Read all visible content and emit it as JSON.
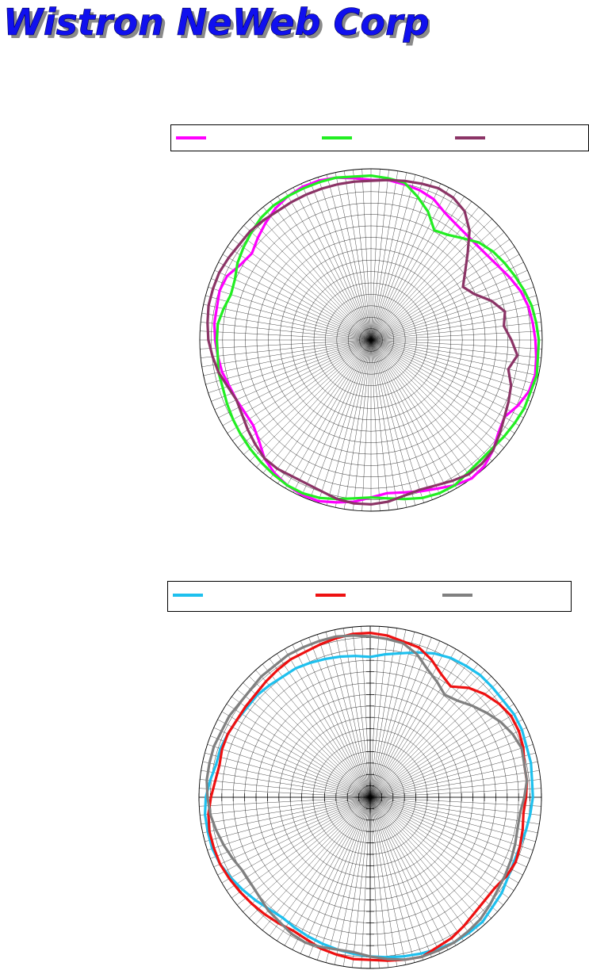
{
  "logo": {
    "text": "Wistron NeWeb Corp.",
    "fill": "#1010ee",
    "shadow": "#8a8a8a"
  },
  "chart_data": [
    {
      "type": "polar-line",
      "radial_grid_rings": 15,
      "angular_spokes": 120,
      "series": [
        {
          "color": "#ff00ff",
          "values": [
            0.935,
            0.94,
            0.93,
            0.92,
            0.9,
            0.86,
            0.84,
            0.83,
            0.83,
            0.84,
            0.86,
            0.89,
            0.92,
            0.94,
            0.95,
            0.96,
            0.97,
            0.98,
            0.97,
            0.94,
            0.9,
            0.92,
            0.96,
            0.99,
            1.0,
            0.98,
            0.95,
            0.93,
            0.91,
            0.9,
            0.92,
            0.95,
            0.97,
            0.99,
            0.99,
            0.98,
            0.96,
            0.93,
            0.88,
            0.85,
            0.85,
            0.86,
            0.87,
            0.89,
            0.9,
            0.91,
            0.92,
            0.92,
            0.93,
            0.92,
            0.88,
            0.86,
            0.89,
            0.92,
            0.95,
            0.97,
            0.98,
            0.98,
            0.97,
            0.95,
            0.935
          ]
        },
        {
          "color": "#22ee22",
          "values": [
            0.96,
            0.95,
            0.94,
            0.88,
            0.82,
            0.74,
            0.76,
            0.8,
            0.85,
            0.88,
            0.9,
            0.92,
            0.94,
            0.96,
            0.97,
            0.98,
            0.98,
            0.99,
            0.98,
            0.98,
            0.97,
            0.96,
            0.95,
            0.95,
            0.96,
            0.98,
            0.98,
            0.97,
            0.95,
            0.93,
            0.92,
            0.93,
            0.95,
            0.97,
            0.98,
            0.98,
            0.97,
            0.96,
            0.95,
            0.94,
            0.93,
            0.92,
            0.91,
            0.91,
            0.9,
            0.9,
            0.9,
            0.88,
            0.86,
            0.87,
            0.9,
            0.92,
            0.94,
            0.96,
            0.97,
            0.97,
            0.97,
            0.97,
            0.97,
            0.96,
            0.96
          ]
        },
        {
          "color": "#8b3466",
          "values": [
            0.93,
            0.94,
            0.95,
            0.96,
            0.97,
            0.96,
            0.93,
            0.86,
            0.76,
            0.68,
            0.62,
            0.66,
            0.74,
            0.8,
            0.78,
            0.82,
            0.86,
            0.82,
            0.86,
            0.88,
            0.9,
            0.93,
            0.96,
            0.97,
            0.97,
            0.95,
            0.93,
            0.92,
            0.93,
            0.95,
            0.96,
            0.96,
            0.95,
            0.93,
            0.92,
            0.92,
            0.93,
            0.93,
            0.91,
            0.89,
            0.87,
            0.86,
            0.88,
            0.91,
            0.93,
            0.95,
            0.96,
            0.97,
            0.97,
            0.97,
            0.96,
            0.95,
            0.95,
            0.94,
            0.93,
            0.93,
            0.93,
            0.93,
            0.93,
            0.93,
            0.93
          ]
        }
      ]
    },
    {
      "type": "polar-line",
      "radial_grid_rings": 15,
      "angular_spokes": 120,
      "series": [
        {
          "color": "#1ec0ee",
          "values": [
            0.82,
            0.84,
            0.86,
            0.89,
            0.92,
            0.94,
            0.95,
            0.96,
            0.96,
            0.96,
            0.97,
            0.97,
            0.96,
            0.96,
            0.95,
            0.95,
            0.94,
            0.93,
            0.92,
            0.92,
            0.93,
            0.95,
            0.96,
            0.98,
            0.98,
            0.98,
            0.97,
            0.96,
            0.95,
            0.94,
            0.93,
            0.92,
            0.91,
            0.9,
            0.89,
            0.88,
            0.87,
            0.88,
            0.9,
            0.92,
            0.94,
            0.96,
            0.97,
            0.97,
            0.97,
            0.96,
            0.94,
            0.92,
            0.92,
            0.91,
            0.9,
            0.89,
            0.89,
            0.88,
            0.87,
            0.87,
            0.86,
            0.85,
            0.84,
            0.83,
            0.82
          ]
        },
        {
          "color": "#ee1111",
          "values": [
            0.96,
            0.95,
            0.93,
            0.92,
            0.88,
            0.83,
            0.8,
            0.86,
            0.9,
            0.93,
            0.95,
            0.95,
            0.94,
            0.92,
            0.92,
            0.91,
            0.9,
            0.91,
            0.92,
            0.93,
            0.92,
            0.9,
            0.9,
            0.91,
            0.93,
            0.95,
            0.96,
            0.98,
            0.97,
            0.96,
            0.95,
            0.95,
            0.94,
            0.93,
            0.91,
            0.9,
            0.91,
            0.92,
            0.93,
            0.94,
            0.95,
            0.96,
            0.96,
            0.96,
            0.95,
            0.93,
            0.91,
            0.9,
            0.91,
            0.91,
            0.9,
            0.9,
            0.9,
            0.91,
            0.92,
            0.93,
            0.93,
            0.94,
            0.95,
            0.96,
            0.96
          ]
        },
        {
          "color": "#808080",
          "values": [
            0.94,
            0.93,
            0.92,
            0.88,
            0.82,
            0.78,
            0.74,
            0.76,
            0.8,
            0.84,
            0.88,
            0.91,
            0.93,
            0.92,
            0.92,
            0.9,
            0.88,
            0.88,
            0.89,
            0.9,
            0.91,
            0.92,
            0.94,
            0.96,
            0.97,
            0.98,
            0.98,
            0.98,
            0.97,
            0.95,
            0.93,
            0.91,
            0.91,
            0.92,
            0.93,
            0.92,
            0.9,
            0.89,
            0.87,
            0.86,
            0.86,
            0.88,
            0.9,
            0.92,
            0.94,
            0.95,
            0.96,
            0.96,
            0.96,
            0.95,
            0.95,
            0.94,
            0.94,
            0.95,
            0.95,
            0.96,
            0.96,
            0.96,
            0.96,
            0.95,
            0.94
          ]
        }
      ]
    }
  ]
}
